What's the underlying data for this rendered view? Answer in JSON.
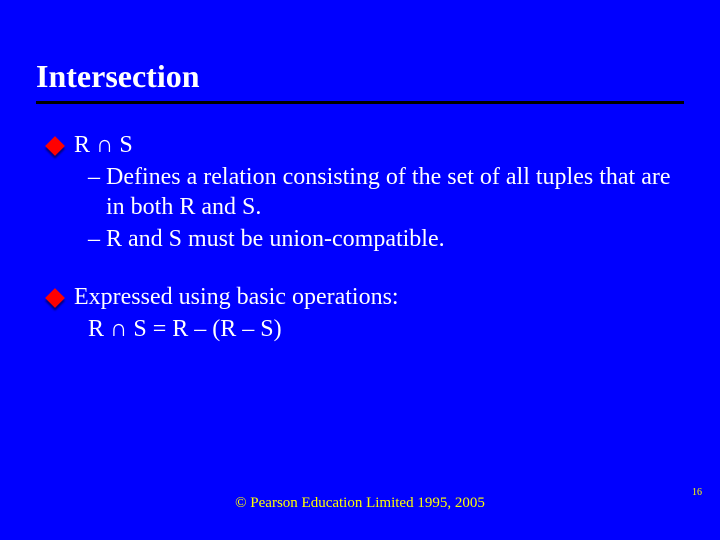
{
  "colors": {
    "background": "#0000ff",
    "title_text": "#ffffff",
    "body_text": "#ffffff",
    "bullet_fill": "#ff0000",
    "underline": "#000000",
    "footer_text": "#ffff00"
  },
  "typography": {
    "family": "Times New Roman",
    "title_fontsize_pt": 32,
    "title_weight": "bold",
    "body_fontsize_pt": 24,
    "body_weight": "bold",
    "footer_fontsize_pt": 15
  },
  "title": "Intersection",
  "block1": {
    "head": "R ∩ S",
    "sub1": "Defines a relation consisting of the set of all tuples that are in both R and S.",
    "sub2": "R and S must be union-compatible."
  },
  "block2": {
    "head": "Expressed using basic operations:",
    "line": "R ∩ S = R – (R – S)"
  },
  "footer": "© Pearson Education Limited 1995, 2005",
  "page_number": "16"
}
